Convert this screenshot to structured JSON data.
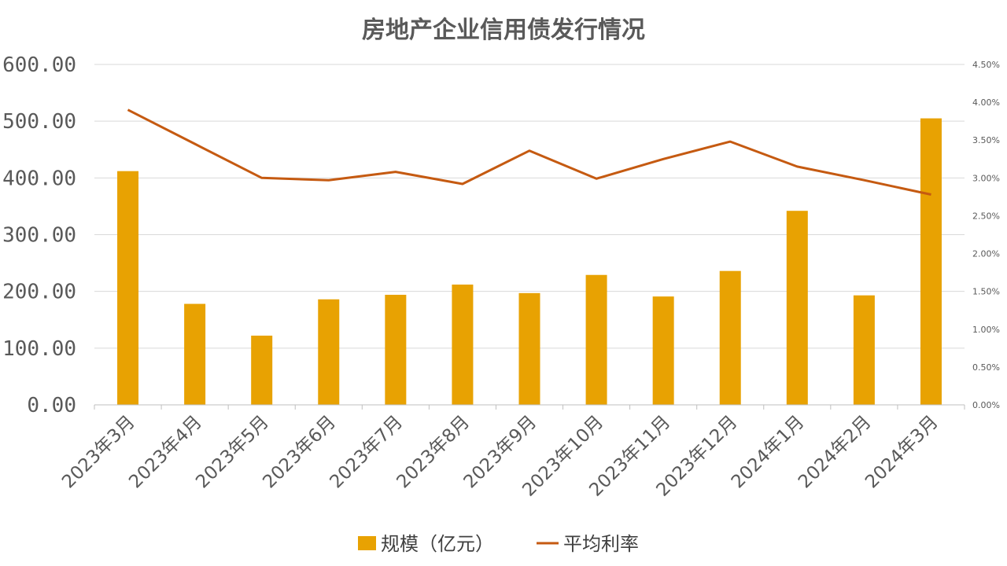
{
  "chart_data": {
    "type": "bar",
    "title": "房地产企业信用债发行情况",
    "categories": [
      "2023年3月",
      "2023年4月",
      "2023年5月",
      "2023年6月",
      "2023年7月",
      "2023年8月",
      "2023年9月",
      "2023年10月",
      "2023年11月",
      "2023年12月",
      "2024年1月",
      "2024年2月",
      "2024年3月"
    ],
    "series": [
      {
        "name": "规模（亿元）",
        "type": "bar",
        "axis": "left",
        "color": "#E8A202",
        "values": [
          412,
          178,
          122,
          186,
          194,
          212,
          197,
          229,
          191,
          236,
          342,
          193,
          505
        ]
      },
      {
        "name": "平均利率",
        "type": "line",
        "axis": "right",
        "color": "#C55A11",
        "values": [
          3.9,
          3.45,
          3.0,
          2.97,
          3.08,
          2.92,
          3.36,
          2.99,
          3.25,
          3.48,
          3.15,
          2.97,
          2.78
        ]
      }
    ],
    "y_left": {
      "ylim": [
        0,
        600
      ],
      "ticks": [
        "0.00",
        "100.00",
        "200.00",
        "300.00",
        "400.00",
        "500.00",
        "600.00"
      ]
    },
    "y_right": {
      "ylim": [
        0,
        4.5
      ],
      "ticks": [
        "0.00%",
        "0.50%",
        "1.00%",
        "1.50%",
        "2.00%",
        "2.50%",
        "3.00%",
        "3.50%",
        "4.00%",
        "4.50%"
      ]
    },
    "grid": true,
    "legend_position": "bottom"
  }
}
